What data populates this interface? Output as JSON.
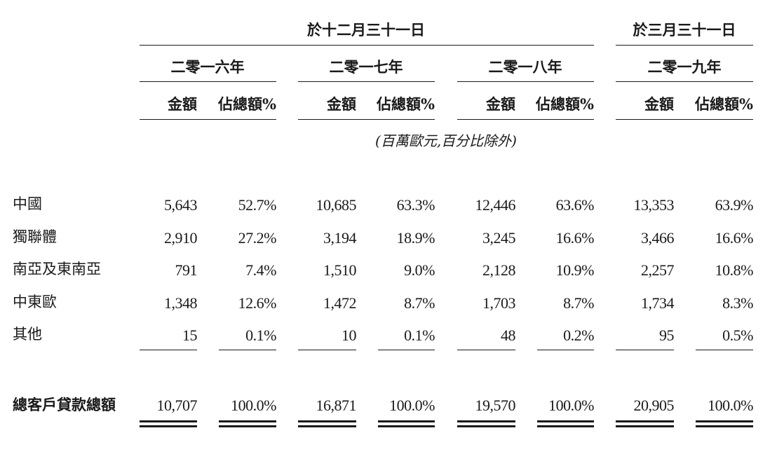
{
  "header": {
    "group1": "於十二月三十一日",
    "group2": "於三月三十一日"
  },
  "years": [
    "二零一六年",
    "二零一七年",
    "二零一八年",
    "二零一九年"
  ],
  "subheaders": {
    "amount": "金額",
    "percent": "佔總額%"
  },
  "unit_note": "(百萬歐元,百分比除外)",
  "rows": [
    {
      "label": "中國",
      "values": [
        "5,643",
        "52.7%",
        "10,685",
        "63.3%",
        "12,446",
        "63.6%",
        "13,353",
        "63.9%"
      ]
    },
    {
      "label": "獨聯體",
      "values": [
        "2,910",
        "27.2%",
        "3,194",
        "18.9%",
        "3,245",
        "16.6%",
        "3,466",
        "16.6%"
      ]
    },
    {
      "label": "南亞及東南亞",
      "values": [
        "791",
        "7.4%",
        "1,510",
        "9.0%",
        "2,128",
        "10.9%",
        "2,257",
        "10.8%"
      ]
    },
    {
      "label": "中東歐",
      "values": [
        "1,348",
        "12.6%",
        "1,472",
        "8.7%",
        "1,703",
        "8.7%",
        "1,734",
        "8.3%"
      ]
    },
    {
      "label": "其他",
      "values": [
        "15",
        "0.1%",
        "10",
        "0.1%",
        "48",
        "0.2%",
        "95",
        "0.5%"
      ]
    }
  ],
  "total": {
    "label": "總客戶貸款總額",
    "values": [
      "10,707",
      "100.0%",
      "16,871",
      "100.0%",
      "19,570",
      "100.0%",
      "20,905",
      "100.0%"
    ]
  }
}
